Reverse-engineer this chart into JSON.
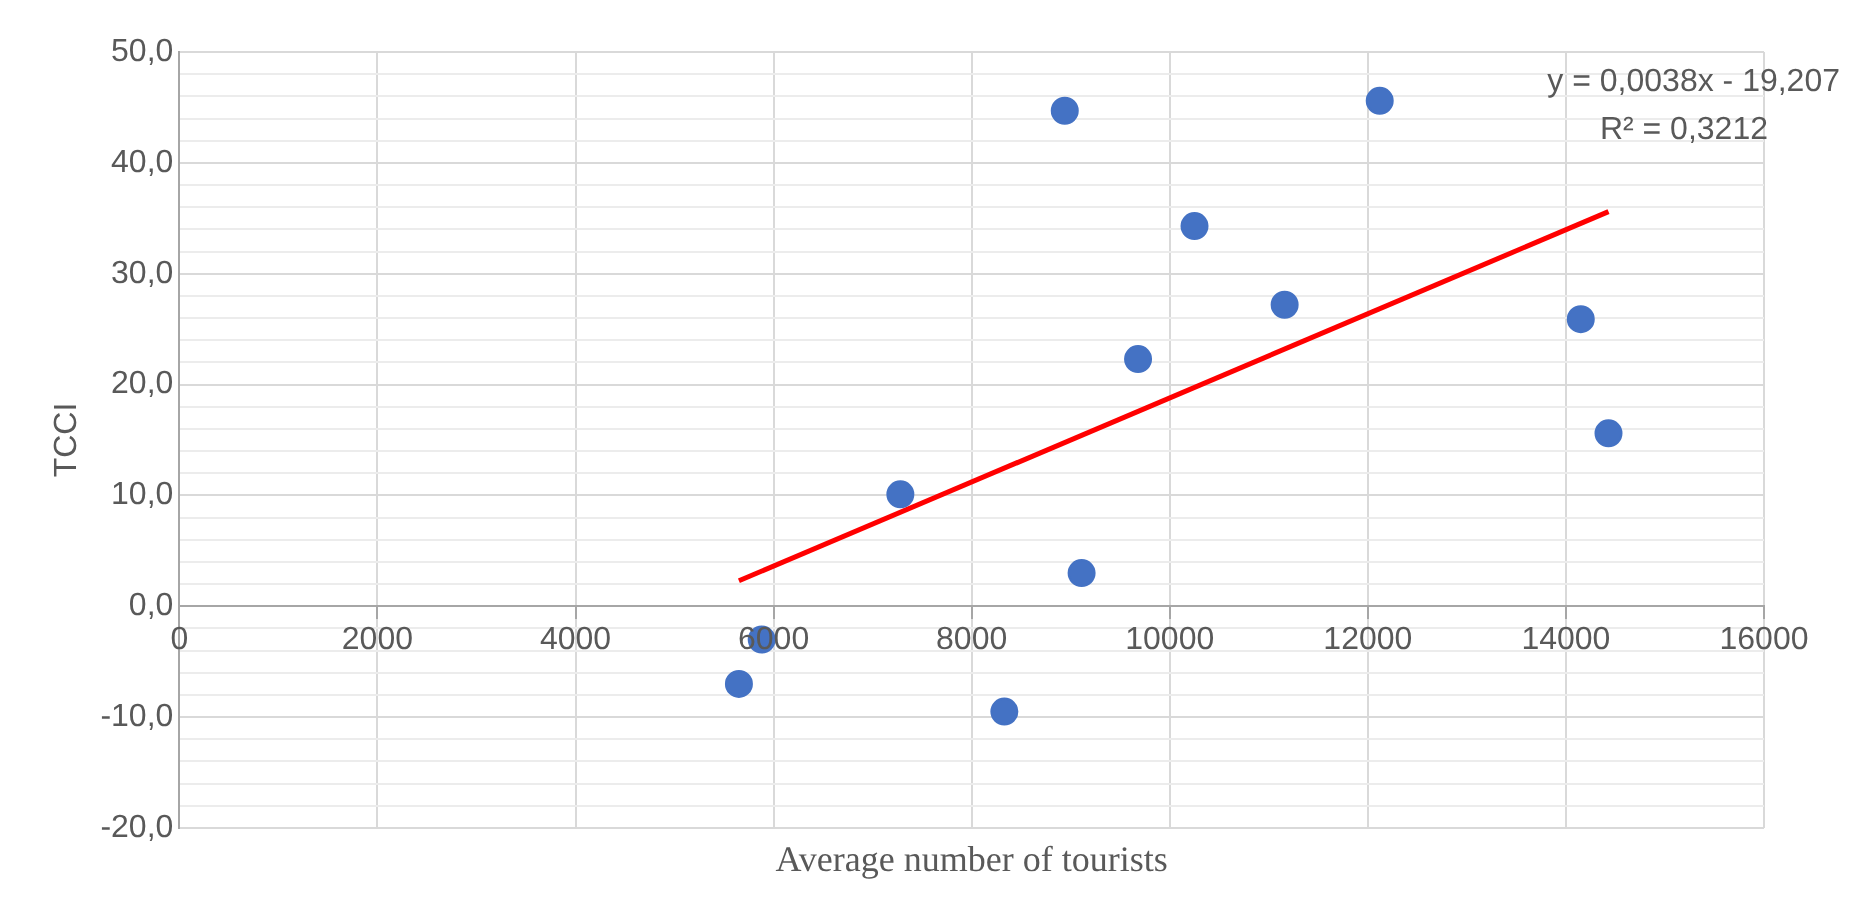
{
  "chart_data": {
    "type": "scatter",
    "xlabel": "Average number of tourists",
    "ylabel": "TCCI",
    "xlim": [
      0,
      16000
    ],
    "xticks": [
      0,
      2000,
      4000,
      6000,
      8000,
      10000,
      12000,
      14000,
      16000
    ],
    "ylim": [
      -20,
      50
    ],
    "yticks": [
      {
        "value": -20,
        "label": "-20,0"
      },
      {
        "value": -18,
        "label": null
      },
      {
        "value": -16,
        "label": null
      },
      {
        "value": -14,
        "label": null
      },
      {
        "value": -12,
        "label": null
      },
      {
        "value": -10,
        "label": "-10,0"
      },
      {
        "value": -8,
        "label": null
      },
      {
        "value": -6,
        "label": null
      },
      {
        "value": -4,
        "label": null
      },
      {
        "value": -2,
        "label": null
      },
      {
        "value": 0,
        "label": "0,0"
      },
      {
        "value": 2,
        "label": null
      },
      {
        "value": 4,
        "label": null
      },
      {
        "value": 6,
        "label": null
      },
      {
        "value": 8,
        "label": null
      },
      {
        "value": 10,
        "label": "10,0"
      },
      {
        "value": 12,
        "label": null
      },
      {
        "value": 14,
        "label": null
      },
      {
        "value": 16,
        "label": null
      },
      {
        "value": 18,
        "label": null
      },
      {
        "value": 20,
        "label": "20,0"
      },
      {
        "value": 22,
        "label": null
      },
      {
        "value": 24,
        "label": null
      },
      {
        "value": 26,
        "label": null
      },
      {
        "value": 28,
        "label": null
      },
      {
        "value": 30,
        "label": "30,0"
      },
      {
        "value": 32,
        "label": null
      },
      {
        "value": 34,
        "label": null
      },
      {
        "value": 36,
        "label": null
      },
      {
        "value": 38,
        "label": null
      },
      {
        "value": 40,
        "label": "40,0"
      },
      {
        "value": 42,
        "label": null
      },
      {
        "value": 44,
        "label": null
      },
      {
        "value": 46,
        "label": null
      },
      {
        "value": 48,
        "label": null
      },
      {
        "value": 50,
        "label": "50,0"
      }
    ],
    "grid": true,
    "legend": false,
    "marker": "circle",
    "series": [
      {
        "color": "#4472c4",
        "x": [
          5650,
          5880,
          7280,
          8330,
          8940,
          9110,
          9680,
          10250,
          11160,
          12120,
          14150,
          14430
        ],
        "values": [
          -7.0,
          -3.0,
          10.1,
          -9.5,
          44.7,
          3.0,
          22.3,
          34.3,
          27.2,
          45.6,
          25.9,
          15.6
        ]
      },
      {
        "type": "line",
        "color": "#ff0000",
        "marker": "none",
        "x": [
          5650,
          14430
        ],
        "values": [
          2.3,
          35.6
        ]
      }
    ],
    "annotations": [
      "y = 0,0038x - 19,207",
      "R² = 0,3212"
    ]
  }
}
